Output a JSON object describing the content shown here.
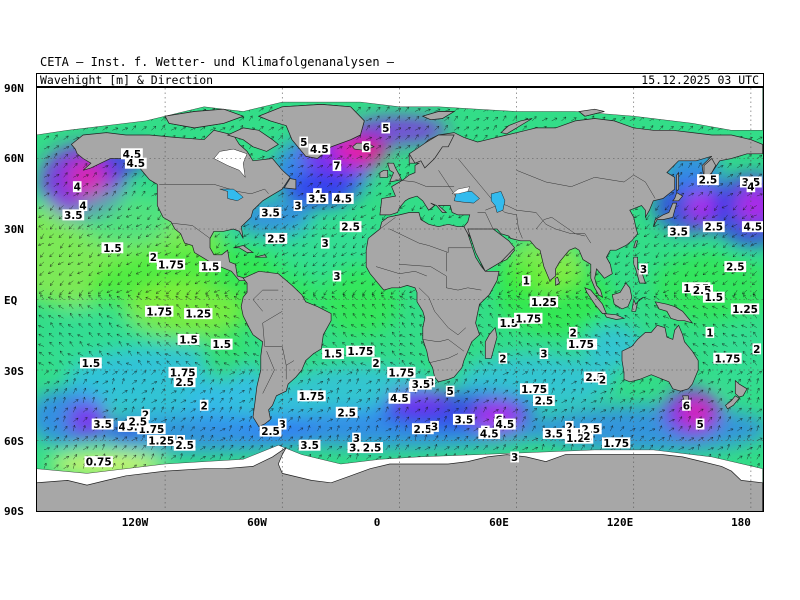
{
  "header": {
    "institute": "CETA — Inst. f. Wetter- und Klimafolgenanalysen —",
    "product": "Wavehight [m] & Direction",
    "valid_time": "15.12.2025 03 UTC"
  },
  "axes": {
    "lat_labels": [
      "90N",
      "60N",
      "30N",
      "EQ",
      "30S",
      "60S",
      "90S"
    ],
    "lon_labels": [
      "120W",
      "60W",
      "0",
      "60E",
      "120E",
      "180"
    ]
  },
  "colors": {
    "land": "#a7a7a7",
    "ice": "#ffffff",
    "scale": [
      "#ffff66",
      "#b8f230",
      "#33ee33",
      "#33dd99",
      "#33bbee",
      "#3377ff",
      "#3333ee",
      "#8822ee",
      "#cc22ee",
      "#ee22aa",
      "#ee1144"
    ]
  },
  "chart_data": {
    "type": "map",
    "variable": "Wavehight [m] & Direction",
    "labels": [
      {
        "lat": 62,
        "lon": -137,
        "v": "4.5"
      },
      {
        "lat": 58,
        "lon": -135,
        "v": "4.5"
      },
      {
        "lat": 48,
        "lon": -165,
        "v": "4"
      },
      {
        "lat": 40,
        "lon": -162,
        "v": "4"
      },
      {
        "lat": 36,
        "lon": -167,
        "v": "3.5"
      },
      {
        "lat": 22,
        "lon": -147,
        "v": "1.5"
      },
      {
        "lat": 18,
        "lon": -126,
        "v": "2"
      },
      {
        "lat": 15,
        "lon": -117,
        "v": "1.75"
      },
      {
        "lat": 14,
        "lon": -97,
        "v": "1.5"
      },
      {
        "lat": -5,
        "lon": -123,
        "v": "1.75"
      },
      {
        "lat": -6,
        "lon": -103,
        "v": "1.25"
      },
      {
        "lat": -17,
        "lon": -108,
        "v": "1.5"
      },
      {
        "lat": -19,
        "lon": -91,
        "v": "1.5"
      },
      {
        "lat": -27,
        "lon": -158,
        "v": "1.5"
      },
      {
        "lat": -31,
        "lon": -111,
        "v": "1.75"
      },
      {
        "lat": -35,
        "lon": -110,
        "v": "2.5"
      },
      {
        "lat": -45,
        "lon": -100,
        "v": "2"
      },
      {
        "lat": -53,
        "lon": -152,
        "v": "3.5"
      },
      {
        "lat": -54,
        "lon": -142,
        "v": "4"
      },
      {
        "lat": -54,
        "lon": -135,
        "v": "3.5"
      },
      {
        "lat": -55,
        "lon": -127,
        "v": "1.75"
      },
      {
        "lat": -49,
        "lon": -130,
        "v": "2"
      },
      {
        "lat": -52,
        "lon": -134,
        "v": "2.5"
      },
      {
        "lat": -60,
        "lon": -122,
        "v": "1.25"
      },
      {
        "lat": -60,
        "lon": -112,
        "v": "2"
      },
      {
        "lat": -62,
        "lon": -110,
        "v": "2.5"
      },
      {
        "lat": -69,
        "lon": -154,
        "v": "0.75"
      },
      {
        "lat": 67,
        "lon": -49,
        "v": "5"
      },
      {
        "lat": 64,
        "lon": -41,
        "v": "4.5"
      },
      {
        "lat": 65,
        "lon": -17,
        "v": "6"
      },
      {
        "lat": 57,
        "lon": -32,
        "v": "7"
      },
      {
        "lat": 73,
        "lon": -7,
        "v": "5"
      },
      {
        "lat": 45,
        "lon": -42,
        "v": "4"
      },
      {
        "lat": 43,
        "lon": -42,
        "v": "3.5"
      },
      {
        "lat": 43,
        "lon": -29,
        "v": "4.5"
      },
      {
        "lat": 40,
        "lon": -52,
        "v": "3"
      },
      {
        "lat": 37,
        "lon": -66,
        "v": "3.5"
      },
      {
        "lat": 31,
        "lon": -25,
        "v": "2.5"
      },
      {
        "lat": 26,
        "lon": -63,
        "v": "2.5"
      },
      {
        "lat": 24,
        "lon": -38,
        "v": "3"
      },
      {
        "lat": 10,
        "lon": -32,
        "v": "3"
      },
      {
        "lat": -23,
        "lon": -34,
        "v": "1.5"
      },
      {
        "lat": -22,
        "lon": -20,
        "v": "1.75"
      },
      {
        "lat": -27,
        "lon": -12,
        "v": "2"
      },
      {
        "lat": -31,
        "lon": 1,
        "v": "1.75"
      },
      {
        "lat": -35,
        "lon": 16,
        "v": "3"
      },
      {
        "lat": -37,
        "lon": 7,
        "v": "4"
      },
      {
        "lat": -36,
        "lon": 11,
        "v": "3.5"
      },
      {
        "lat": -42,
        "lon": 0,
        "v": "4.5"
      },
      {
        "lat": -39,
        "lon": 26,
        "v": "5"
      },
      {
        "lat": -41,
        "lon": -48,
        "v": "1"
      },
      {
        "lat": -41,
        "lon": -45,
        "v": "1.75"
      },
      {
        "lat": -48,
        "lon": -27,
        "v": "2.5"
      },
      {
        "lat": -53,
        "lon": -60,
        "v": "3"
      },
      {
        "lat": -56,
        "lon": -66,
        "v": "2.5"
      },
      {
        "lat": -62,
        "lon": -46,
        "v": "3.5"
      },
      {
        "lat": -59,
        "lon": -22,
        "v": "3"
      },
      {
        "lat": -63,
        "lon": -21,
        "v": "3.5"
      },
      {
        "lat": -63,
        "lon": -14,
        "v": "2.5"
      },
      {
        "lat": -55,
        "lon": 12,
        "v": "2.5"
      },
      {
        "lat": -54,
        "lon": 18,
        "v": "3"
      },
      {
        "lat": -51,
        "lon": 33,
        "v": "3.5"
      },
      {
        "lat": -51,
        "lon": 51,
        "v": "6"
      },
      {
        "lat": -53,
        "lon": 54,
        "v": "4.5"
      },
      {
        "lat": -56,
        "lon": 44,
        "v": "4"
      },
      {
        "lat": -57,
        "lon": 46,
        "v": "4.5"
      },
      {
        "lat": -57,
        "lon": 79,
        "v": "3.5"
      },
      {
        "lat": -54,
        "lon": 87,
        "v": "2"
      },
      {
        "lat": -57,
        "lon": 90,
        "v": "1.5"
      },
      {
        "lat": -59,
        "lon": 92,
        "v": "1.25"
      },
      {
        "lat": -55,
        "lon": 98,
        "v": "2.5"
      },
      {
        "lat": -58,
        "lon": 96,
        "v": "2"
      },
      {
        "lat": -61,
        "lon": 111,
        "v": "1.75"
      },
      {
        "lat": -67,
        "lon": 59,
        "v": "3"
      },
      {
        "lat": -43,
        "lon": 74,
        "v": "2.5"
      },
      {
        "lat": -38,
        "lon": 69,
        "v": "1.75"
      },
      {
        "lat": -25,
        "lon": 53,
        "v": "2"
      },
      {
        "lat": -23,
        "lon": 74,
        "v": "3"
      },
      {
        "lat": -14,
        "lon": 89,
        "v": "2"
      },
      {
        "lat": -19,
        "lon": 94,
        "v": "1.75"
      },
      {
        "lat": -33,
        "lon": 100,
        "v": "2.5"
      },
      {
        "lat": -34,
        "lon": 104,
        "v": "2"
      },
      {
        "lat": -1,
        "lon": 74,
        "v": "1.25"
      },
      {
        "lat": -10,
        "lon": 56,
        "v": "1.5"
      },
      {
        "lat": -8,
        "lon": 66,
        "v": "1.75"
      },
      {
        "lat": 8,
        "lon": 65,
        "v": "1"
      },
      {
        "lat": 13,
        "lon": 125,
        "v": "3"
      },
      {
        "lat": 5,
        "lon": 152,
        "v": "1.25"
      },
      {
        "lat": 4,
        "lon": 155,
        "v": "2.5"
      },
      {
        "lat": 1,
        "lon": 161,
        "v": "1.5"
      },
      {
        "lat": -14,
        "lon": 159,
        "v": "1"
      },
      {
        "lat": -19,
        "lon": 93,
        "v": "1.75"
      },
      {
        "lat": -25,
        "lon": 168,
        "v": "1.75"
      },
      {
        "lat": -21,
        "lon": 183,
        "v": "2"
      },
      {
        "lat": -4,
        "lon": 177,
        "v": "1.25"
      },
      {
        "lat": 14,
        "lon": 172,
        "v": "2.5"
      },
      {
        "lat": 29,
        "lon": 143,
        "v": "3.5"
      },
      {
        "lat": 31,
        "lon": 161,
        "v": "2.5"
      },
      {
        "lat": 31,
        "lon": 181,
        "v": "4.5"
      },
      {
        "lat": 51,
        "lon": 158,
        "v": "2.5"
      },
      {
        "lat": 50,
        "lon": 180,
        "v": "3.5"
      },
      {
        "lat": 48,
        "lon": 180,
        "v": "4"
      },
      {
        "lat": -45,
        "lon": 147,
        "v": "6"
      },
      {
        "lat": -53,
        "lon": 154,
        "v": "5"
      }
    ]
  }
}
